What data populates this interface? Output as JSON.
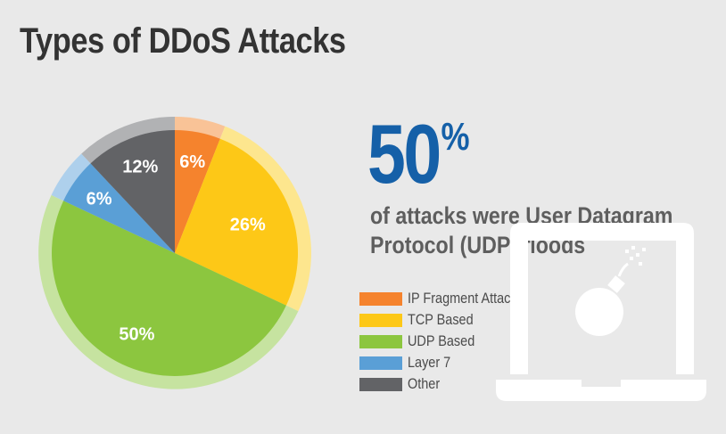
{
  "title": "Types of DDoS Attacks",
  "highlight": {
    "value": "50",
    "unit": "%",
    "text_line1": "of attacks were User Datagram",
    "text_line2": "Protocol (UDP) floods"
  },
  "chart_data": {
    "type": "pie",
    "title": "Types of DDoS Attacks",
    "slices": [
      {
        "label": "IP Fragment Attacks",
        "value": 6,
        "display": "6%",
        "color": "#f5832d",
        "ring_color": "#f9c397"
      },
      {
        "label": "TCP Based",
        "value": 26,
        "display": "26%",
        "color": "#fdc817",
        "ring_color": "#fde68e"
      },
      {
        "label": "UDP Based",
        "value": 50,
        "display": "50%",
        "color": "#8cc63f",
        "ring_color": "#c6e3a0"
      },
      {
        "label": "Layer 7",
        "value": 6,
        "display": "6%",
        "color": "#5a9fd6",
        "ring_color": "#aed0ec"
      },
      {
        "label": "Other",
        "value": 12,
        "display": "12%",
        "color": "#626366",
        "ring_color": "#b1b2b4"
      }
    ],
    "start_angle_deg": 0,
    "direction": "clockwise",
    "legend": "bottom-right"
  },
  "legend": [
    {
      "label": "IP Fragment Attacks",
      "color": "#f5832d"
    },
    {
      "label": "TCP Based",
      "color": "#fdc817"
    },
    {
      "label": "UDP Based",
      "color": "#8cc63f"
    },
    {
      "label": "Layer 7",
      "color": "#5a9fd6"
    },
    {
      "label": "Other",
      "color": "#626366"
    }
  ],
  "decoration": {
    "icon": "laptop-bomb-icon"
  }
}
